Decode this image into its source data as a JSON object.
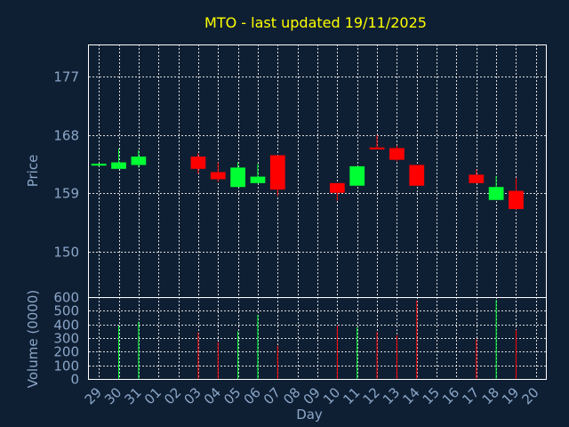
{
  "chart_data": {
    "type": "candlestick",
    "title": "MTO - last updated 19/11/2025",
    "xlabel": "Day",
    "price_panel": {
      "ylabel": "Price",
      "ylim": [
        143,
        182
      ],
      "yticks": [
        150,
        159,
        168,
        177
      ]
    },
    "volume_panel": {
      "ylabel": "Volume (0000)",
      "ylim": [
        0,
        600
      ],
      "yticks": [
        0,
        100,
        200,
        300,
        400,
        500,
        600
      ]
    },
    "categories": [
      "29",
      "30",
      "31",
      "01",
      "02",
      "03",
      "04",
      "05",
      "06",
      "07",
      "08",
      "09",
      "10",
      "11",
      "12",
      "13",
      "14",
      "15",
      "16",
      "17",
      "18",
      "19",
      "20"
    ],
    "candles": [
      {
        "day": "29",
        "open": 163.3,
        "high": 163.6,
        "low": 163.2,
        "close": 163.6,
        "volume": 0
      },
      {
        "day": "30",
        "open": 162.8,
        "high": 165.9,
        "low": 162.8,
        "close": 163.8,
        "volume": 390
      },
      {
        "day": "31",
        "open": 163.4,
        "high": 165.7,
        "low": 163.0,
        "close": 164.7,
        "volume": 420
      },
      {
        "day": "03",
        "open": 164.7,
        "high": 165.2,
        "low": 162.1,
        "close": 162.8,
        "volume": 340
      },
      {
        "day": "04",
        "open": 162.3,
        "high": 163.8,
        "low": 160.8,
        "close": 161.2,
        "volume": 270
      },
      {
        "day": "05",
        "open": 160.0,
        "high": 163.8,
        "low": 160.0,
        "close": 163.0,
        "volume": 350
      },
      {
        "day": "06",
        "open": 160.6,
        "high": 163.6,
        "low": 160.6,
        "close": 161.6,
        "volume": 470
      },
      {
        "day": "07",
        "open": 164.9,
        "high": 164.9,
        "low": 158.6,
        "close": 159.6,
        "volume": 245
      },
      {
        "day": "10",
        "open": 160.6,
        "high": 160.6,
        "low": 157.9,
        "close": 159.1,
        "volume": 390
      },
      {
        "day": "11",
        "open": 160.2,
        "high": 163.2,
        "low": 160.2,
        "close": 163.2,
        "volume": 380
      },
      {
        "day": "12",
        "open": 166.1,
        "high": 168.0,
        "low": 165.8,
        "close": 165.8,
        "volume": 345
      },
      {
        "day": "13",
        "open": 166.0,
        "high": 166.4,
        "low": 164.0,
        "close": 164.2,
        "volume": 320
      },
      {
        "day": "14",
        "open": 163.4,
        "high": 163.4,
        "low": 160.2,
        "close": 160.2,
        "volume": 575
      },
      {
        "day": "17",
        "open": 161.9,
        "high": 162.7,
        "low": 160.6,
        "close": 160.6,
        "volume": 290
      },
      {
        "day": "18",
        "open": 158.0,
        "high": 161.7,
        "low": 158.0,
        "close": 160.0,
        "volume": 580
      },
      {
        "day": "19",
        "open": 159.4,
        "high": 161.4,
        "low": 156.5,
        "close": 156.6,
        "volume": 360
      }
    ],
    "grid": true,
    "colors": {
      "background": "#0f1f33",
      "up": "#00ff33",
      "down": "#ff0000",
      "title": "#ffff00",
      "axis_text": "#8aa6c8",
      "grid": "#ffffff"
    }
  }
}
